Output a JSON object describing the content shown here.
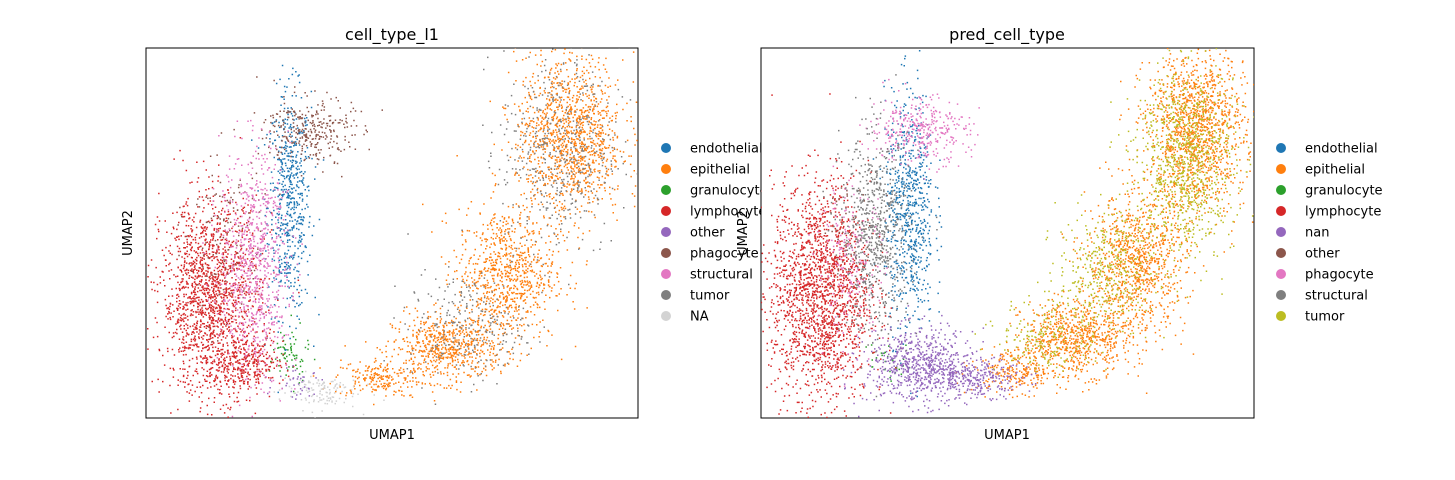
{
  "chart_data": [
    {
      "type": "scatter",
      "title": "cell_type_l1",
      "xlabel": "UMAP1",
      "ylabel": "UMAP2",
      "xlim": [
        0,
        10
      ],
      "ylim": [
        0,
        10
      ],
      "grid": false,
      "legend_position": "right",
      "series": [
        {
          "name": "endothelial",
          "color": "#1f77b4",
          "clusters": [
            {
              "x": 2.9,
              "y": 5.8,
              "sx": 0.22,
              "sy": 1.5,
              "n": 600
            }
          ]
        },
        {
          "name": "epithelial",
          "color": "#ff7f0e",
          "clusters": [
            {
              "x": 4.7,
              "y": 1.1,
              "sx": 0.45,
              "sy": 0.25,
              "n": 200
            },
            {
              "x": 6.1,
              "y": 1.9,
              "sx": 0.55,
              "sy": 0.45,
              "n": 600
            },
            {
              "x": 7.3,
              "y": 3.9,
              "sx": 0.5,
              "sy": 0.9,
              "n": 800
            },
            {
              "x": 8.6,
              "y": 7.6,
              "sx": 0.55,
              "sy": 1.1,
              "n": 1200
            }
          ]
        },
        {
          "name": "granulocyte",
          "color": "#2ca02c",
          "clusters": [
            {
              "x": 2.9,
              "y": 1.7,
              "sx": 0.2,
              "sy": 0.4,
              "n": 70
            }
          ]
        },
        {
          "name": "lymphocyte",
          "color": "#d62728",
          "clusters": [
            {
              "x": 1.3,
              "y": 3.3,
              "sx": 0.5,
              "sy": 1.3,
              "n": 1600
            },
            {
              "x": 2.0,
              "y": 1.5,
              "sx": 0.4,
              "sy": 0.35,
              "n": 300
            }
          ]
        },
        {
          "name": "other",
          "color": "#9467bd",
          "clusters": [
            {
              "x": 3.1,
              "y": 1.0,
              "sx": 0.25,
              "sy": 0.25,
              "n": 40
            }
          ]
        },
        {
          "name": "phagocyte",
          "color": "#8c564b",
          "clusters": [
            {
              "x": 3.3,
              "y": 7.8,
              "sx": 0.45,
              "sy": 0.45,
              "n": 300
            },
            {
              "x": 1.6,
              "y": 5.0,
              "sx": 0.4,
              "sy": 1.2,
              "n": 120
            }
          ]
        },
        {
          "name": "structural",
          "color": "#e377c2",
          "clusters": [
            {
              "x": 2.2,
              "y": 4.2,
              "sx": 0.35,
              "sy": 1.5,
              "n": 800
            }
          ]
        },
        {
          "name": "tumor",
          "color": "#7f7f7f",
          "clusters": [
            {
              "x": 8.4,
              "y": 7.2,
              "sx": 0.6,
              "sy": 1.4,
              "n": 500
            },
            {
              "x": 6.5,
              "y": 2.5,
              "sx": 0.6,
              "sy": 0.7,
              "n": 250
            }
          ]
        },
        {
          "name": "NA",
          "color": "#d3d3d3",
          "clusters": [
            {
              "x": 3.5,
              "y": 0.75,
              "sx": 0.4,
              "sy": 0.25,
              "n": 120
            }
          ]
        }
      ]
    },
    {
      "type": "scatter",
      "title": "pred_cell_type",
      "xlabel": "UMAP1",
      "ylabel": "UMAP2",
      "xlim": [
        0,
        10
      ],
      "ylim": [
        0,
        10
      ],
      "grid": false,
      "legend_position": "right",
      "series": [
        {
          "name": "endothelial",
          "color": "#1f77b4",
          "clusters": [
            {
              "x": 3.0,
              "y": 5.6,
              "sx": 0.25,
              "sy": 1.6,
              "n": 700
            }
          ]
        },
        {
          "name": "epithelial",
          "color": "#ff7f0e",
          "clusters": [
            {
              "x": 5.2,
              "y": 1.3,
              "sx": 0.45,
              "sy": 0.3,
              "n": 250
            },
            {
              "x": 6.4,
              "y": 2.2,
              "sx": 0.55,
              "sy": 0.5,
              "n": 700
            },
            {
              "x": 7.6,
              "y": 4.2,
              "sx": 0.5,
              "sy": 0.9,
              "n": 900
            },
            {
              "x": 8.8,
              "y": 7.8,
              "sx": 0.5,
              "sy": 1.1,
              "n": 1300
            }
          ]
        },
        {
          "name": "granulocyte",
          "color": "#2ca02c",
          "clusters": [
            {
              "x": 2.6,
              "y": 1.6,
              "sx": 0.2,
              "sy": 0.3,
              "n": 30
            }
          ]
        },
        {
          "name": "lymphocyte",
          "color": "#d62728",
          "clusters": [
            {
              "x": 1.2,
              "y": 3.4,
              "sx": 0.5,
              "sy": 1.5,
              "n": 1900
            }
          ]
        },
        {
          "name": "nan",
          "color": "#9467bd",
          "clusters": [
            {
              "x": 3.2,
              "y": 1.4,
              "sx": 0.55,
              "sy": 0.5,
              "n": 700
            },
            {
              "x": 4.4,
              "y": 1.1,
              "sx": 0.45,
              "sy": 0.25,
              "n": 250
            }
          ]
        },
        {
          "name": "other",
          "color": "#8c564b",
          "clusters": [
            {
              "x": 1.8,
              "y": 5.2,
              "sx": 0.3,
              "sy": 0.6,
              "n": 30
            }
          ]
        },
        {
          "name": "phagocyte",
          "color": "#e377c2",
          "clusters": [
            {
              "x": 3.2,
              "y": 7.8,
              "sx": 0.5,
              "sy": 0.45,
              "n": 350
            },
            {
              "x": 1.8,
              "y": 4.2,
              "sx": 0.35,
              "sy": 1.0,
              "n": 200
            }
          ]
        },
        {
          "name": "structural",
          "color": "#7f7f7f",
          "clusters": [
            {
              "x": 2.3,
              "y": 5.0,
              "sx": 0.35,
              "sy": 1.3,
              "n": 700
            }
          ]
        },
        {
          "name": "tumor",
          "color": "#bcbd22",
          "clusters": [
            {
              "x": 8.6,
              "y": 7.0,
              "sx": 0.5,
              "sy": 1.3,
              "n": 900
            },
            {
              "x": 7.0,
              "y": 4.0,
              "sx": 0.5,
              "sy": 0.8,
              "n": 400
            },
            {
              "x": 5.8,
              "y": 2.2,
              "sx": 0.5,
              "sy": 0.5,
              "n": 200
            }
          ]
        }
      ]
    }
  ]
}
